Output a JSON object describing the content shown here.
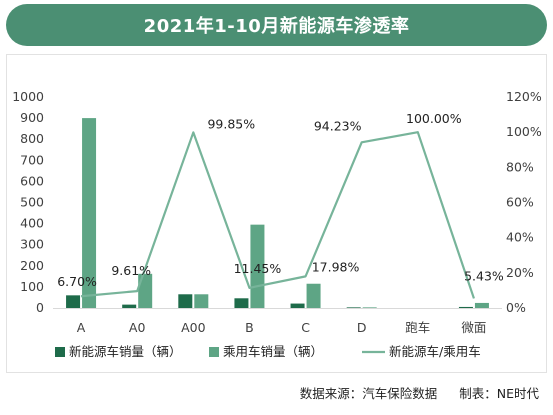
{
  "title": "2021年1-10月新能源车渗透率",
  "footer": {
    "source_label": "数据来源：汽车保险数据",
    "made_by_label": "制表：NE时代"
  },
  "colors": {
    "banner": "#4b8f73",
    "nev_bar": "#1e6b4a",
    "pv_bar": "#5ea585",
    "line": "#77b49a",
    "axis_text": "#404040",
    "grid": "#d9d9d9"
  },
  "chart_data": {
    "type": "bar",
    "categories": [
      "A",
      "A0",
      "A00",
      "B",
      "C",
      "D",
      "跑车",
      "微面"
    ],
    "series": [
      {
        "name": "新能源车销量（辆）",
        "kind": "bar",
        "axis": "left",
        "values": [
          60,
          16,
          65,
          46,
          21,
          3,
          0,
          5
        ]
      },
      {
        "name": "乘用车销量（辆）",
        "kind": "bar",
        "axis": "left",
        "values": [
          900,
          162,
          65,
          395,
          115,
          3,
          0,
          24
        ]
      },
      {
        "name": "新能源车/乘用车",
        "kind": "line",
        "axis": "right",
        "values": [
          6.7,
          9.61,
          99.85,
          11.45,
          17.98,
          94.23,
          100.0,
          5.43
        ],
        "labels": [
          "6.70%",
          "9.61%",
          "99.85%",
          "11.45%",
          "17.98%",
          "94.23%",
          "100.00%",
          "5.43%"
        ]
      }
    ],
    "y_left": {
      "min": 0,
      "max": 1000,
      "ticks": [
        "0",
        "100",
        "200",
        "300",
        "400",
        "500",
        "600",
        "700",
        "800",
        "900",
        "1000"
      ]
    },
    "y_right": {
      "min": 0,
      "max": 120,
      "ticks": [
        "0%",
        "20%",
        "40%",
        "60%",
        "80%",
        "100%",
        "120%"
      ]
    },
    "legend_position": "bottom",
    "grid": false
  }
}
